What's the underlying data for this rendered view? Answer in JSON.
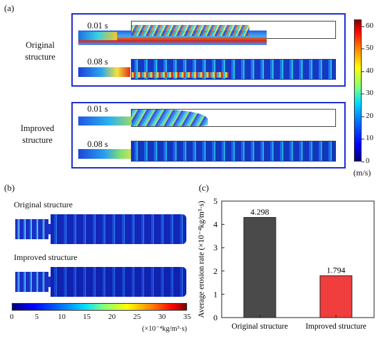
{
  "panel_a": {
    "label": "(a)",
    "groups": [
      {
        "name_lines": [
          "Original",
          "structure"
        ],
        "times": [
          "0.01 s",
          "0.08 s"
        ]
      },
      {
        "name_lines": [
          "Improved",
          "structure"
        ],
        "times": [
          "0.01 s",
          "0.08 s"
        ]
      }
    ],
    "colorbar": {
      "ticks": [
        "60",
        "50",
        "40",
        "30",
        "20",
        "10",
        "0"
      ],
      "max": 63,
      "unit": "(m/s)"
    }
  },
  "panel_b": {
    "label": "(b)",
    "rows": [
      "Original structure",
      "Improved structure"
    ],
    "colorbar": {
      "ticks": [
        "0",
        "5",
        "10",
        "15",
        "20",
        "25",
        "30",
        "35"
      ],
      "max": 35,
      "unit": "(×10⁻⁴kg/m³·s)"
    }
  },
  "panel_c": {
    "label": "(c)"
  },
  "chart_data": {
    "type": "bar",
    "categories": [
      "Original structure",
      "Improved structure"
    ],
    "values": [
      4.298,
      1.794
    ],
    "data_labels": [
      "4.298",
      "1.794"
    ],
    "colors": [
      "#4a4a4a",
      "#f03d3d"
    ],
    "ylabel": "Average erosion rate (×10⁻⁴kg/m³·s)",
    "ylim": [
      0,
      5
    ],
    "yticks": [
      "0",
      "1",
      "2",
      "3",
      "4",
      "5"
    ],
    "grid": false
  }
}
